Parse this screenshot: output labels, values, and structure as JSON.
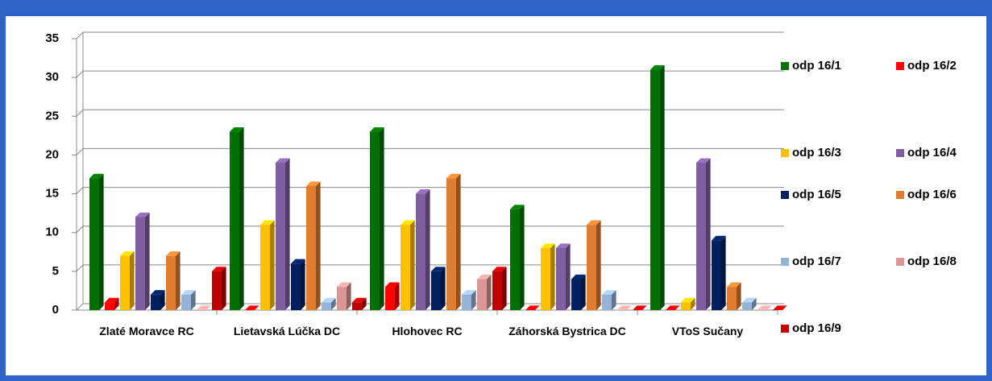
{
  "chart_data": {
    "type": "bar",
    "categories": [
      "Zlaté Moravce RC",
      "Lietavská Lúčka DC",
      "Hlohovec RC",
      "Záhorská Bystrica DC",
      "VToS Sučany"
    ],
    "series": [
      {
        "name": "odp 16/1",
        "color": "#007000",
        "values": [
          17,
          23,
          23,
          13,
          31
        ]
      },
      {
        "name": "odp 16/2",
        "color": "#ff0000",
        "values": [
          1,
          0,
          3,
          0,
          0
        ]
      },
      {
        "name": "odp 16/3",
        "color": "#ffc000",
        "values": [
          7,
          11,
          11,
          8,
          1
        ]
      },
      {
        "name": "odp 16/4",
        "color": "#7f5fa0",
        "values": [
          12,
          19,
          15,
          8,
          19
        ]
      },
      {
        "name": "odp 16/5",
        "color": "#002060",
        "values": [
          2,
          6,
          5,
          4,
          9
        ]
      },
      {
        "name": "odp 16/6",
        "color": "#e07d30",
        "values": [
          7,
          16,
          17,
          11,
          3
        ]
      },
      {
        "name": "odp 16/7",
        "color": "#95b3d7",
        "values": [
          2,
          1,
          2,
          2,
          1
        ]
      },
      {
        "name": "odp 16/8",
        "color": "#d99694",
        "values": [
          0,
          3,
          4,
          0,
          0
        ]
      },
      {
        "name": "odp 16/9",
        "color": "#c00000",
        "values": [
          5,
          1,
          5,
          0,
          0
        ]
      }
    ],
    "ylim": [
      0,
      35
    ],
    "yticks": [
      0,
      5,
      10,
      15,
      20,
      25,
      30,
      35
    ],
    "grid": true,
    "legend": "right"
  }
}
